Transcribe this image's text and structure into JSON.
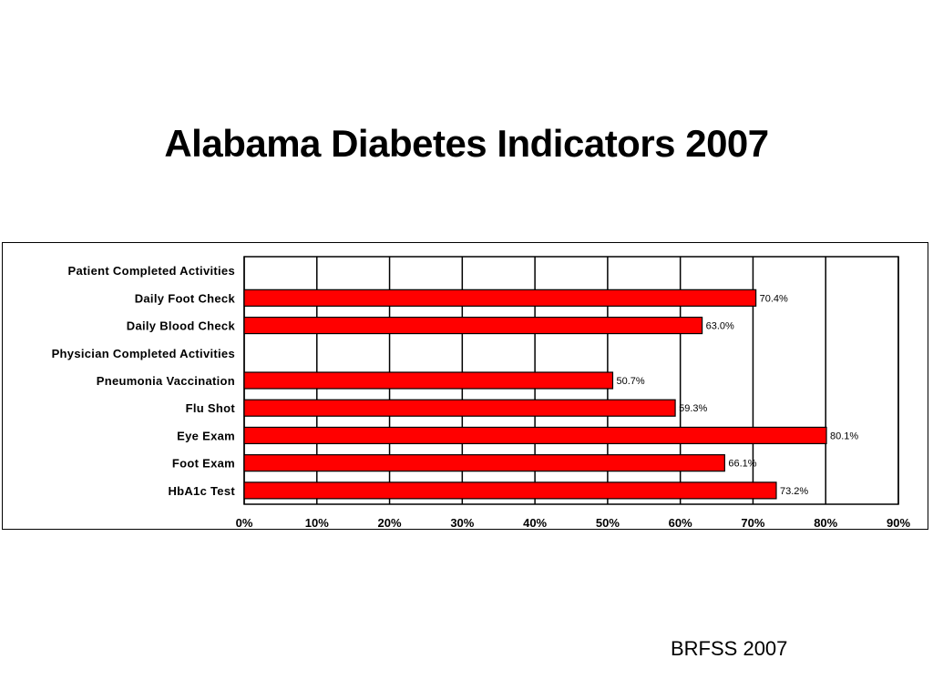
{
  "title": "Alabama Diabetes Indicators 2007",
  "source": "BRFSS 2007",
  "colors": {
    "bar": "#ff0000",
    "bar_stroke": "#000000",
    "grid": "#000000"
  },
  "chart_data": {
    "type": "bar",
    "orientation": "horizontal",
    "title": "Alabama Diabetes Indicators 2007",
    "xlabel": "",
    "ylabel": "",
    "xlim": [
      0,
      90
    ],
    "grid": true,
    "categories": [
      "Patient Completed Activities",
      "Daily Foot Check",
      "Daily Blood Check",
      "Physician Completed Activities",
      "Pneumonia Vaccination",
      "Flu Shot",
      "Eye Exam",
      "Foot Exam",
      "HbA1c Test"
    ],
    "values": [
      null,
      70.4,
      63.0,
      null,
      50.7,
      59.3,
      80.1,
      66.1,
      73.2
    ],
    "value_labels": [
      "",
      "70.4%",
      "63.0%",
      "",
      "50.7%",
      "59.3%",
      "80.1%",
      "66.1%",
      "73.2%"
    ],
    "x_ticks": [
      0,
      10,
      20,
      30,
      40,
      50,
      60,
      70,
      80,
      90
    ],
    "x_tick_labels": [
      "0%",
      "10%",
      "20%",
      "30%",
      "40%",
      "50%",
      "60%",
      "70%",
      "80%",
      "90%"
    ]
  }
}
